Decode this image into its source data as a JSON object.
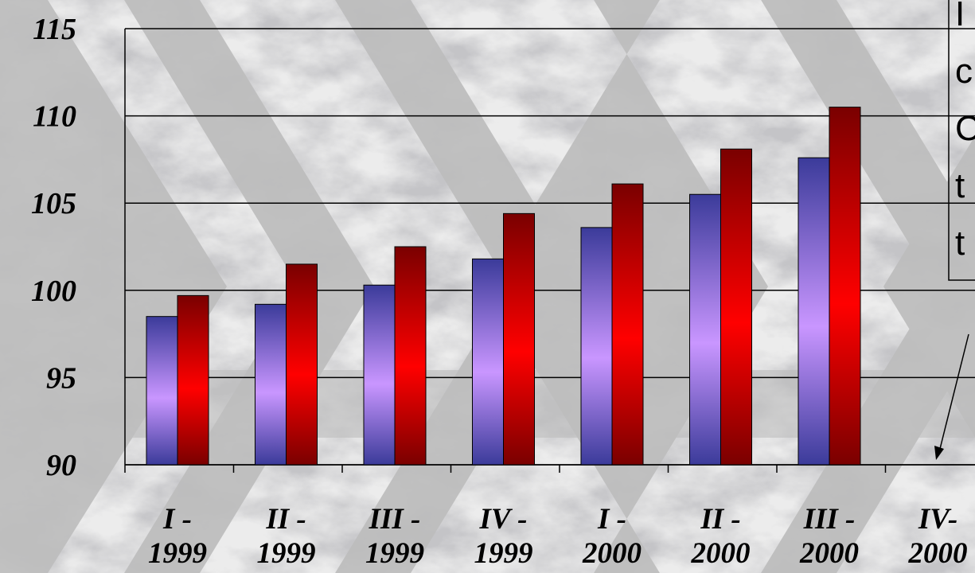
{
  "chart_data": {
    "type": "bar",
    "categories": [
      [
        "I -",
        "1999"
      ],
      [
        "II -",
        "1999"
      ],
      [
        "III -",
        "1999"
      ],
      [
        "IV -",
        "1999"
      ],
      [
        "I -",
        "2000"
      ],
      [
        "II -",
        "2000"
      ],
      [
        "III -",
        "2000"
      ],
      [
        "IV-",
        "2000"
      ]
    ],
    "series": [
      {
        "values": [
          98.5,
          99.2,
          100.3,
          101.8,
          103.6,
          105.5,
          107.6,
          null
        ],
        "color_top": "#3b3b9a",
        "color_mid": "#c996ff"
      },
      {
        "values": [
          99.7,
          101.5,
          102.5,
          104.4,
          106.1,
          108.1,
          110.5,
          null
        ],
        "color_top": "#7a0000",
        "color_mid": "#ff0000"
      }
    ],
    "ylim": [
      90,
      115
    ],
    "yticks": [
      90,
      95,
      100,
      105,
      110,
      115
    ],
    "grid": true,
    "annotation_fragments": [
      "I",
      "c",
      "C",
      "t",
      "t"
    ]
  }
}
